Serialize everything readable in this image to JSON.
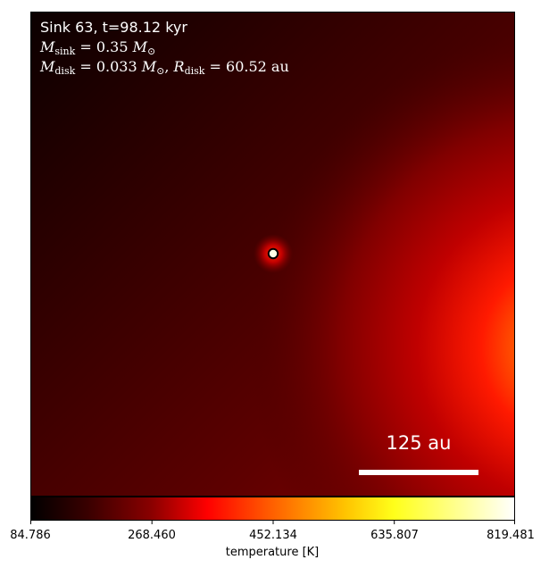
{
  "annotation": {
    "sink_line": "Sink 63, t=98.12 kyr",
    "m_sink_symbol": "M",
    "m_sink_sub": "sink",
    "m_sink_value": " = 0.35 ",
    "m_sink_unit": "M",
    "m_sink_unit_sub": "⊙",
    "m_disk_symbol": "M",
    "m_disk_sub": "disk",
    "m_disk_value": " = 0.033 ",
    "m_disk_unit": "M",
    "m_disk_unit_sub": "⊙",
    "sep": ", ",
    "r_disk_symbol": "R",
    "r_disk_sub": "disk",
    "r_disk_value": " = 60.52 au"
  },
  "scale_bar": {
    "label": "125 au",
    "length_au": 125
  },
  "colorbar": {
    "label": "temperature [K]",
    "ticks": [
      "84.786",
      "268.460",
      "452.134",
      "635.807",
      "819.481"
    ],
    "vmin": 84.786,
    "vmax": 819.481,
    "colormap": "hot",
    "colors": [
      "#000000",
      "#5a0000",
      "#b30000",
      "#ff0000",
      "#ff6a00",
      "#ffd400",
      "#ffff6e",
      "#ffffff"
    ]
  },
  "colors": {
    "background": "#ffffff",
    "text_on_image": "#ffffff",
    "sink_marker_fill": "#ffffe6",
    "sink_marker_edge": "#000000"
  }
}
